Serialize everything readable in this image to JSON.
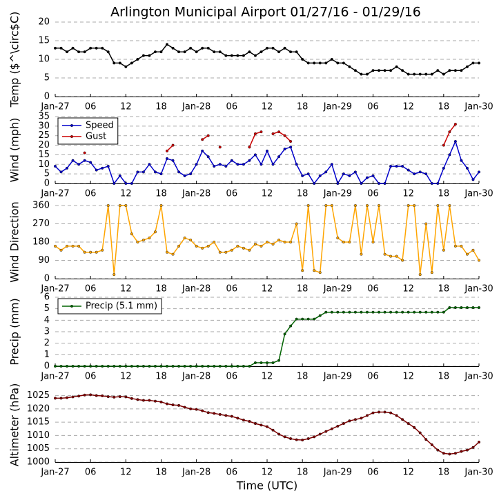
{
  "chart_data": [
    {
      "type": "line",
      "title": "Arlington Municipal Airport 01/27/16 - 01/29/16",
      "ylabel": "Temp ($^\\circ$C)",
      "x": [
        0,
        1,
        2,
        3,
        4,
        5,
        6,
        7,
        8,
        9,
        10,
        11,
        12,
        13,
        14,
        15,
        16,
        17,
        18,
        19,
        20,
        21,
        22,
        23,
        24,
        25,
        26,
        27,
        28,
        29,
        30,
        31,
        32,
        33,
        34,
        35,
        36,
        37,
        38,
        39,
        40,
        41,
        42,
        43,
        44,
        45,
        46,
        47,
        48,
        49,
        50,
        51,
        52,
        53,
        54,
        55,
        56,
        57,
        58,
        59,
        60,
        61,
        62,
        63,
        64,
        65,
        66,
        67,
        68,
        69,
        70,
        71,
        72
      ],
      "series": [
        {
          "color": "#000000",
          "values": [
            13,
            13,
            12,
            13,
            12,
            12,
            13,
            13,
            13,
            12,
            9,
            9,
            8,
            9,
            10,
            11,
            11,
            12,
            12,
            14,
            13,
            12,
            12,
            13,
            12,
            13,
            13,
            12,
            12,
            11,
            11,
            11,
            11,
            12,
            11,
            12,
            13,
            13,
            12,
            13,
            12,
            12,
            10,
            9,
            9,
            9,
            9,
            10,
            9,
            9,
            8,
            7,
            6,
            6,
            7,
            7,
            7,
            7,
            8,
            7,
            6,
            6,
            6,
            6,
            6,
            7,
            6,
            7,
            7,
            7,
            8,
            9,
            9
          ]
        }
      ],
      "xlim": [
        0,
        72
      ],
      "xticks": [
        {
          "value": 0,
          "label": "Jan-27"
        },
        {
          "value": 6,
          "label": "06"
        },
        12,
        18,
        {
          "value": 24,
          "label": "Jan-28"
        },
        {
          "value": 30,
          "label": "06"
        },
        {
          "value": 36,
          "label": "12"
        },
        {
          "value": 42,
          "label": "18"
        },
        {
          "value": 48,
          "label": "Jan-29"
        },
        {
          "value": 54,
          "label": "06"
        },
        {
          "value": 60,
          "label": "12"
        },
        {
          "value": 66,
          "label": "18"
        },
        {
          "value": 72,
          "label": "Jan-30"
        }
      ],
      "ylim": [
        0,
        20
      ],
      "yticks": [
        0,
        5,
        10,
        15,
        20
      ],
      "grid": true
    },
    {
      "type": "line",
      "ylabel": "Wind (mph)",
      "legend": "upper left",
      "x": [
        0,
        1,
        2,
        3,
        4,
        5,
        6,
        7,
        8,
        9,
        10,
        11,
        12,
        13,
        14,
        15,
        16,
        17,
        18,
        19,
        20,
        21,
        22,
        23,
        24,
        25,
        26,
        27,
        28,
        29,
        30,
        31,
        32,
        33,
        34,
        35,
        36,
        37,
        38,
        39,
        40,
        41,
        42,
        43,
        44,
        45,
        46,
        47,
        48,
        49,
        50,
        51,
        52,
        53,
        54,
        55,
        56,
        57,
        58,
        59,
        60,
        61,
        62,
        63,
        64,
        65,
        66,
        67,
        68,
        69,
        70,
        71,
        72
      ],
      "series": [
        {
          "name": "Speed",
          "color": "#0000cc",
          "values": [
            9,
            6,
            8,
            12,
            10,
            12,
            11,
            7,
            8,
            9,
            0,
            4,
            0,
            0,
            6,
            6,
            10,
            6,
            5,
            13,
            12,
            6,
            4,
            5,
            10,
            17,
            14,
            9,
            10,
            9,
            12,
            10,
            10,
            12,
            15,
            10,
            17,
            10,
            14,
            18,
            19,
            10,
            4,
            5,
            0,
            4,
            6,
            10,
            0,
            5,
            4,
            6,
            0,
            3,
            4,
            0,
            0,
            9,
            9,
            9,
            7,
            5,
            6,
            5,
            0,
            0,
            8,
            15,
            22,
            12,
            8,
            2,
            6
          ]
        },
        {
          "name": "Gust",
          "color": "#cc0000",
          "values": [
            null,
            null,
            null,
            null,
            null,
            16,
            null,
            null,
            null,
            null,
            null,
            null,
            null,
            null,
            null,
            null,
            null,
            null,
            null,
            17,
            20,
            null,
            null,
            null,
            null,
            23,
            25,
            null,
            19,
            null,
            null,
            null,
            null,
            19,
            26,
            27,
            null,
            26,
            27,
            25,
            22,
            null,
            null,
            null,
            null,
            null,
            null,
            null,
            null,
            null,
            null,
            null,
            null,
            null,
            null,
            null,
            null,
            null,
            null,
            null,
            null,
            null,
            null,
            null,
            null,
            null,
            20,
            27,
            31,
            null,
            null,
            null,
            null
          ]
        }
      ],
      "xlim": [
        0,
        72
      ],
      "xticks": [
        {
          "value": 0,
          "label": "Jan-27"
        },
        {
          "value": 6,
          "label": "06"
        },
        12,
        18,
        {
          "value": 24,
          "label": "Jan-28"
        },
        {
          "value": 30,
          "label": "06"
        },
        {
          "value": 36,
          "label": "12"
        },
        {
          "value": 42,
          "label": "18"
        },
        {
          "value": 48,
          "label": "Jan-29"
        },
        {
          "value": 54,
          "label": "06"
        },
        {
          "value": 60,
          "label": "12"
        },
        {
          "value": 66,
          "label": "18"
        },
        {
          "value": 72,
          "label": "Jan-30"
        }
      ],
      "ylim": [
        0,
        35
      ],
      "yticks": [
        0,
        5,
        10,
        15,
        20,
        25,
        30,
        35
      ],
      "grid": true
    },
    {
      "type": "line",
      "ylabel": "Wind Direction",
      "x": [
        0,
        1,
        2,
        3,
        4,
        5,
        6,
        7,
        8,
        9,
        10,
        11,
        12,
        13,
        14,
        15,
        16,
        17,
        18,
        19,
        20,
        21,
        22,
        23,
        24,
        25,
        26,
        27,
        28,
        29,
        30,
        31,
        32,
        33,
        34,
        35,
        36,
        37,
        38,
        39,
        40,
        41,
        42,
        43,
        44,
        45,
        46,
        47,
        48,
        49,
        50,
        51,
        52,
        53,
        54,
        55,
        56,
        57,
        58,
        59,
        60,
        61,
        62,
        63,
        64,
        65,
        66,
        67,
        68,
        69,
        70,
        71,
        72
      ],
      "series": [
        {
          "color": "#ffa500",
          "values": [
            160,
            140,
            160,
            160,
            160,
            130,
            130,
            130,
            140,
            360,
            20,
            360,
            360,
            220,
            180,
            190,
            200,
            230,
            360,
            130,
            120,
            160,
            200,
            190,
            160,
            150,
            160,
            180,
            130,
            130,
            140,
            160,
            150,
            140,
            170,
            160,
            180,
            170,
            190,
            180,
            180,
            270,
            40,
            360,
            40,
            30,
            360,
            360,
            200,
            180,
            180,
            360,
            120,
            360,
            180,
            360,
            120,
            110,
            110,
            90,
            360,
            360,
            20,
            270,
            30,
            360,
            140,
            360,
            160,
            160,
            120,
            140,
            90
          ]
        }
      ],
      "xlim": [
        0,
        72
      ],
      "xticks": [
        {
          "value": 0,
          "label": "Jan-27"
        },
        {
          "value": 6,
          "label": "06"
        },
        12,
        18,
        {
          "value": 24,
          "label": "Jan-28"
        },
        {
          "value": 30,
          "label": "06"
        },
        {
          "value": 36,
          "label": "12"
        },
        {
          "value": 42,
          "label": "18"
        },
        {
          "value": 48,
          "label": "Jan-29"
        },
        {
          "value": 54,
          "label": "06"
        },
        {
          "value": 60,
          "label": "12"
        },
        {
          "value": 66,
          "label": "18"
        },
        {
          "value": 72,
          "label": "Jan-30"
        }
      ],
      "ylim": [
        0,
        360
      ],
      "yticks": [
        0,
        90,
        180,
        270,
        360
      ],
      "grid": true
    },
    {
      "type": "line",
      "ylabel": "Precip (mm)",
      "legend": "upper left",
      "x": [
        0,
        1,
        2,
        3,
        4,
        5,
        6,
        7,
        8,
        9,
        10,
        11,
        12,
        13,
        14,
        15,
        16,
        17,
        18,
        19,
        20,
        21,
        22,
        23,
        24,
        25,
        26,
        27,
        28,
        29,
        30,
        31,
        32,
        33,
        34,
        35,
        36,
        37,
        38,
        39,
        40,
        41,
        42,
        43,
        44,
        45,
        46,
        47,
        48,
        49,
        50,
        51,
        52,
        53,
        54,
        55,
        56,
        57,
        58,
        59,
        60,
        61,
        62,
        63,
        64,
        65,
        66,
        67,
        68,
        69,
        70,
        71,
        72
      ],
      "series": [
        {
          "name": "Precip (5.1 mm)",
          "color": "#006400",
          "values": [
            0,
            0,
            0,
            0,
            0,
            0,
            0,
            0,
            0,
            0,
            0,
            0,
            0,
            0,
            0,
            0,
            0,
            0,
            0,
            0,
            0,
            0,
            0,
            0,
            0,
            0,
            0,
            0,
            0,
            0,
            0,
            0,
            0,
            0,
            0.3,
            0.3,
            0.3,
            0.3,
            0.5,
            2.8,
            3.5,
            4.1,
            4.1,
            4.1,
            4.1,
            4.4,
            4.7,
            4.7,
            4.7,
            4.7,
            4.7,
            4.7,
            4.7,
            4.7,
            4.7,
            4.7,
            4.7,
            4.7,
            4.7,
            4.7,
            4.7,
            4.7,
            4.7,
            4.7,
            4.7,
            4.7,
            4.7,
            5.1,
            5.1,
            5.1,
            5.1,
            5.1,
            5.1
          ]
        }
      ],
      "xlim": [
        0,
        72
      ],
      "xticks": [
        {
          "value": 0,
          "label": "Jan-27"
        },
        {
          "value": 6,
          "label": "06"
        },
        12,
        18,
        {
          "value": 24,
          "label": "Jan-28"
        },
        {
          "value": 30,
          "label": "06"
        },
        {
          "value": 36,
          "label": "12"
        },
        {
          "value": 42,
          "label": "18"
        },
        {
          "value": 48,
          "label": "Jan-29"
        },
        {
          "value": 54,
          "label": "06"
        },
        {
          "value": 60,
          "label": "12"
        },
        {
          "value": 66,
          "label": "18"
        },
        {
          "value": 72,
          "label": "Jan-30"
        }
      ],
      "ylim": [
        0,
        6
      ],
      "yticks": [
        0,
        1,
        2,
        3,
        4,
        5,
        6
      ],
      "grid": true
    },
    {
      "type": "line",
      "ylabel": "Altimeter (hPa)",
      "xlabel": "Time (UTC)",
      "x": [
        0,
        1,
        2,
        3,
        4,
        5,
        6,
        7,
        8,
        9,
        10,
        11,
        12,
        13,
        14,
        15,
        16,
        17,
        18,
        19,
        20,
        21,
        22,
        23,
        24,
        25,
        26,
        27,
        28,
        29,
        30,
        31,
        32,
        33,
        34,
        35,
        36,
        37,
        38,
        39,
        40,
        41,
        42,
        43,
        44,
        45,
        46,
        47,
        48,
        49,
        50,
        51,
        52,
        53,
        54,
        55,
        56,
        57,
        58,
        59,
        60,
        61,
        62,
        63,
        64,
        65,
        66,
        67,
        68,
        69,
        70,
        71,
        72
      ],
      "series": [
        {
          "color": "#800000",
          "values": [
            1024,
            1024,
            1024.2,
            1024.5,
            1024.8,
            1025.2,
            1025.3,
            1025,
            1024.9,
            1024.6,
            1024.4,
            1024.6,
            1024.5,
            1023.9,
            1023.5,
            1023.2,
            1023.2,
            1022.9,
            1022.6,
            1021.9,
            1021.5,
            1021.3,
            1020.6,
            1020,
            1019.8,
            1019.3,
            1018.6,
            1018.3,
            1017.9,
            1017.5,
            1017.2,
            1016.5,
            1015.8,
            1015.3,
            1014.5,
            1013.9,
            1013.3,
            1012,
            1010.5,
            1009.5,
            1008.8,
            1008.4,
            1008.3,
            1008.8,
            1009.5,
            1010.5,
            1011.5,
            1012.5,
            1013.5,
            1014.5,
            1015.5,
            1016,
            1016.5,
            1017.5,
            1018.5,
            1018.8,
            1018.8,
            1018.5,
            1017.5,
            1016,
            1014.5,
            1013,
            1011,
            1008.5,
            1006.5,
            1004.5,
            1003.3,
            1003,
            1003.3,
            1004,
            1004.5,
            1005.5,
            1007.5
          ]
        }
      ],
      "xlim": [
        0,
        72
      ],
      "xticks": [
        {
          "value": 0,
          "label": "Jan-27"
        },
        {
          "value": 6,
          "label": "06"
        },
        12,
        18,
        {
          "value": 24,
          "label": "Jan-28"
        },
        {
          "value": 30,
          "label": "06"
        },
        {
          "value": 36,
          "label": "12"
        },
        {
          "value": 42,
          "label": "18"
        },
        {
          "value": 48,
          "label": "Jan-29"
        },
        {
          "value": 54,
          "label": "06"
        },
        {
          "value": 60,
          "label": "12"
        },
        {
          "value": 66,
          "label": "18"
        },
        {
          "value": 72,
          "label": "Jan-30"
        }
      ],
      "ylim": [
        1000,
        1028
      ],
      "yticks": [
        1000,
        1005,
        1010,
        1015,
        1020,
        1025
      ],
      "grid": true
    }
  ]
}
